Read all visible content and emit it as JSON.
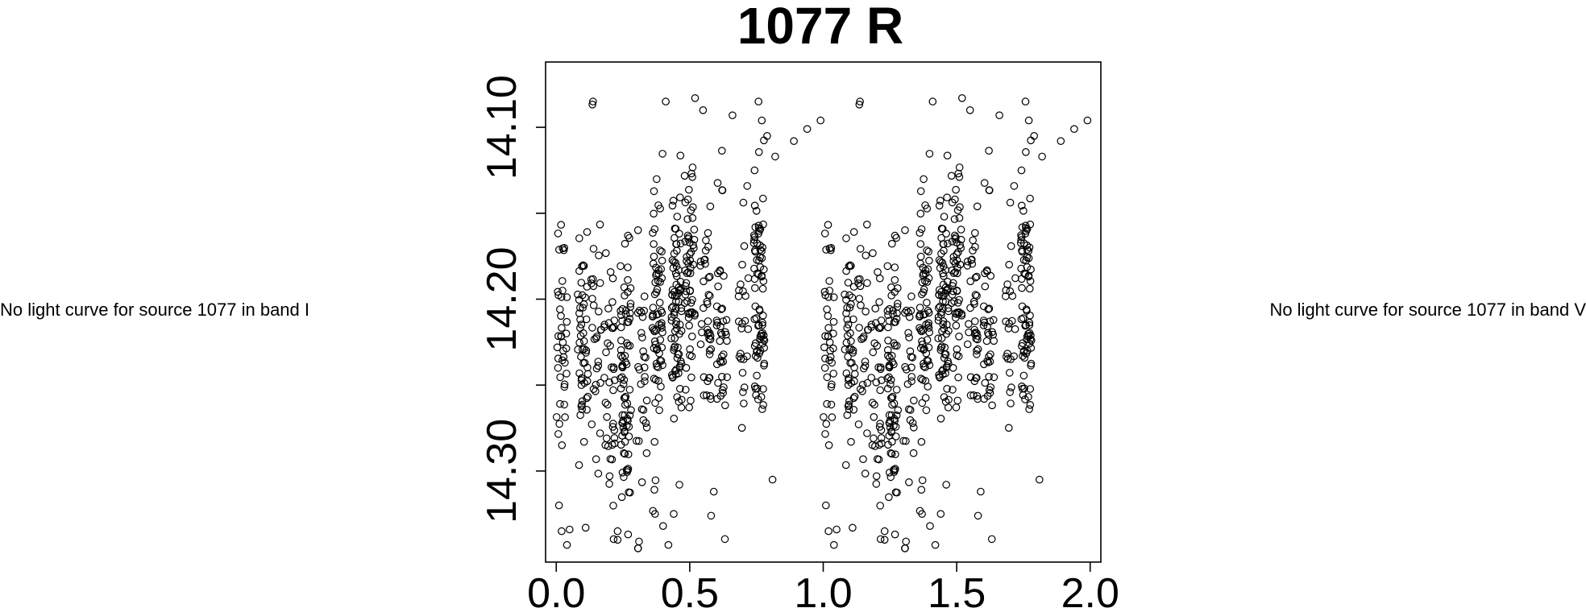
{
  "messages": {
    "left": "No light curve for source 1077 in band I",
    "right": "No light curve for source 1077 in band V"
  },
  "chart_data": {
    "type": "scatter",
    "title": "1077 R",
    "xlabel": "",
    "ylabel": "",
    "xlim": [
      -0.04,
      2.04
    ],
    "ylim": [
      14.353,
      14.062
    ],
    "y_reversed": true,
    "x_ticks": [
      0.0,
      0.5,
      1.0,
      1.5,
      2.0
    ],
    "x_tick_labels": [
      "0.0",
      "0.5",
      "1.0",
      "1.5",
      "2.0"
    ],
    "y_ticks": [
      14.1,
      14.15,
      14.2,
      14.25,
      14.3
    ],
    "y_tick_labels": [
      "14.10",
      "",
      "14.20",
      "",
      "14.30"
    ],
    "marker": "open-circle",
    "color": "#000000",
    "grid": false,
    "period_folded": true,
    "phase_shift": 1.0,
    "clusters": [
      {
        "x": 0.02,
        "y": 14.23,
        "sd": 0.035,
        "n": 40
      },
      {
        "x": 0.1,
        "y": 14.23,
        "sd": 0.035,
        "n": 50
      },
      {
        "x": 0.15,
        "y": 14.22,
        "sd": 0.04,
        "n": 30
      },
      {
        "x": 0.2,
        "y": 14.25,
        "sd": 0.04,
        "n": 40
      },
      {
        "x": 0.26,
        "y": 14.25,
        "sd": 0.035,
        "n": 80
      },
      {
        "x": 0.32,
        "y": 14.24,
        "sd": 0.04,
        "n": 30
      },
      {
        "x": 0.38,
        "y": 14.21,
        "sd": 0.04,
        "n": 70
      },
      {
        "x": 0.45,
        "y": 14.2,
        "sd": 0.035,
        "n": 80
      },
      {
        "x": 0.5,
        "y": 14.19,
        "sd": 0.035,
        "n": 60
      },
      {
        "x": 0.56,
        "y": 14.21,
        "sd": 0.035,
        "n": 40
      },
      {
        "x": 0.62,
        "y": 14.22,
        "sd": 0.04,
        "n": 40
      },
      {
        "x": 0.7,
        "y": 14.21,
        "sd": 0.04,
        "n": 25
      },
      {
        "x": 0.76,
        "y": 14.2,
        "sd": 0.035,
        "n": 80
      }
    ],
    "sparse_points": [
      {
        "x": 0.01,
        "y": 14.32
      },
      {
        "x": 0.02,
        "y": 14.335
      },
      {
        "x": 0.04,
        "y": 14.343
      },
      {
        "x": 0.05,
        "y": 14.334
      },
      {
        "x": 0.11,
        "y": 14.333
      },
      {
        "x": 0.23,
        "y": 14.335
      },
      {
        "x": 0.23,
        "y": 14.34
      },
      {
        "x": 0.31,
        "y": 14.341
      },
      {
        "x": 0.37,
        "y": 14.325
      },
      {
        "x": 0.4,
        "y": 14.332
      },
      {
        "x": 0.42,
        "y": 14.343
      },
      {
        "x": 0.44,
        "y": 14.325
      },
      {
        "x": 0.58,
        "y": 14.326
      },
      {
        "x": 0.59,
        "y": 14.312
      },
      {
        "x": 0.81,
        "y": 14.305
      },
      {
        "x": 0.41,
        "y": 14.085
      },
      {
        "x": 0.52,
        "y": 14.083
      },
      {
        "x": 0.55,
        "y": 14.09
      },
      {
        "x": 0.66,
        "y": 14.093
      },
      {
        "x": 0.77,
        "y": 14.096
      },
      {
        "x": 0.79,
        "y": 14.105
      },
      {
        "x": 0.82,
        "y": 14.117
      },
      {
        "x": 0.89,
        "y": 14.108
      },
      {
        "x": 0.94,
        "y": 14.101
      },
      {
        "x": 0.99,
        "y": 14.096
      }
    ]
  }
}
